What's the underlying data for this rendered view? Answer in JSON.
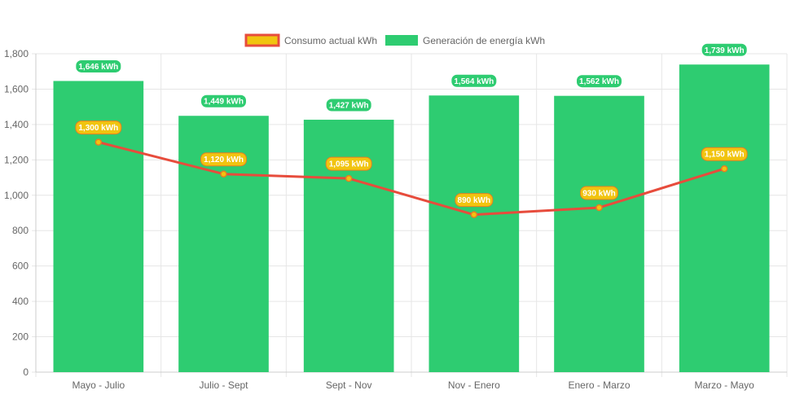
{
  "legend": {
    "consumption_label": "Consumo actual kWh",
    "generation_label": "Generación de energía kWh"
  },
  "colors": {
    "bar": "#2ecc71",
    "line": "#e74c3c",
    "point_fill": "#f1c40f",
    "gen_badge": "#2ecc71",
    "cons_badge": "#f1c40f",
    "cons_badge_border": "#e67e22",
    "grid": "#e6e6e6",
    "axis_text": "#666666"
  },
  "chart_data": {
    "type": "bar",
    "categories": [
      "Mayo - Julio",
      "Julio - Sept",
      "Sept - Nov",
      "Nov - Enero",
      "Enero - Marzo",
      "Marzo - Mayo"
    ],
    "series": [
      {
        "name": "Generación de energía kWh",
        "type": "bar",
        "values": [
          1646,
          1449,
          1427,
          1564,
          1562,
          1739
        ],
        "labels": [
          "1,646 kWh",
          "1,449 kWh",
          "1,427 kWh",
          "1,564 kWh",
          "1,562 kWh",
          "1,739 kWh"
        ]
      },
      {
        "name": "Consumo actual kWh",
        "type": "line",
        "values": [
          1300,
          1120,
          1095,
          890,
          930,
          1150
        ],
        "labels": [
          "1,300 kWh",
          "1,120 kWh",
          "1,095 kWh",
          "890 kWh",
          "930 kWh",
          "1,150 kWh"
        ]
      }
    ],
    "yticks": [
      "0",
      "200",
      "400",
      "600",
      "800",
      "1,000",
      "1,200",
      "1,400",
      "1,600",
      "1,800"
    ],
    "ylim": [
      0,
      1800
    ],
    "grid": true,
    "legend_position": "top"
  }
}
